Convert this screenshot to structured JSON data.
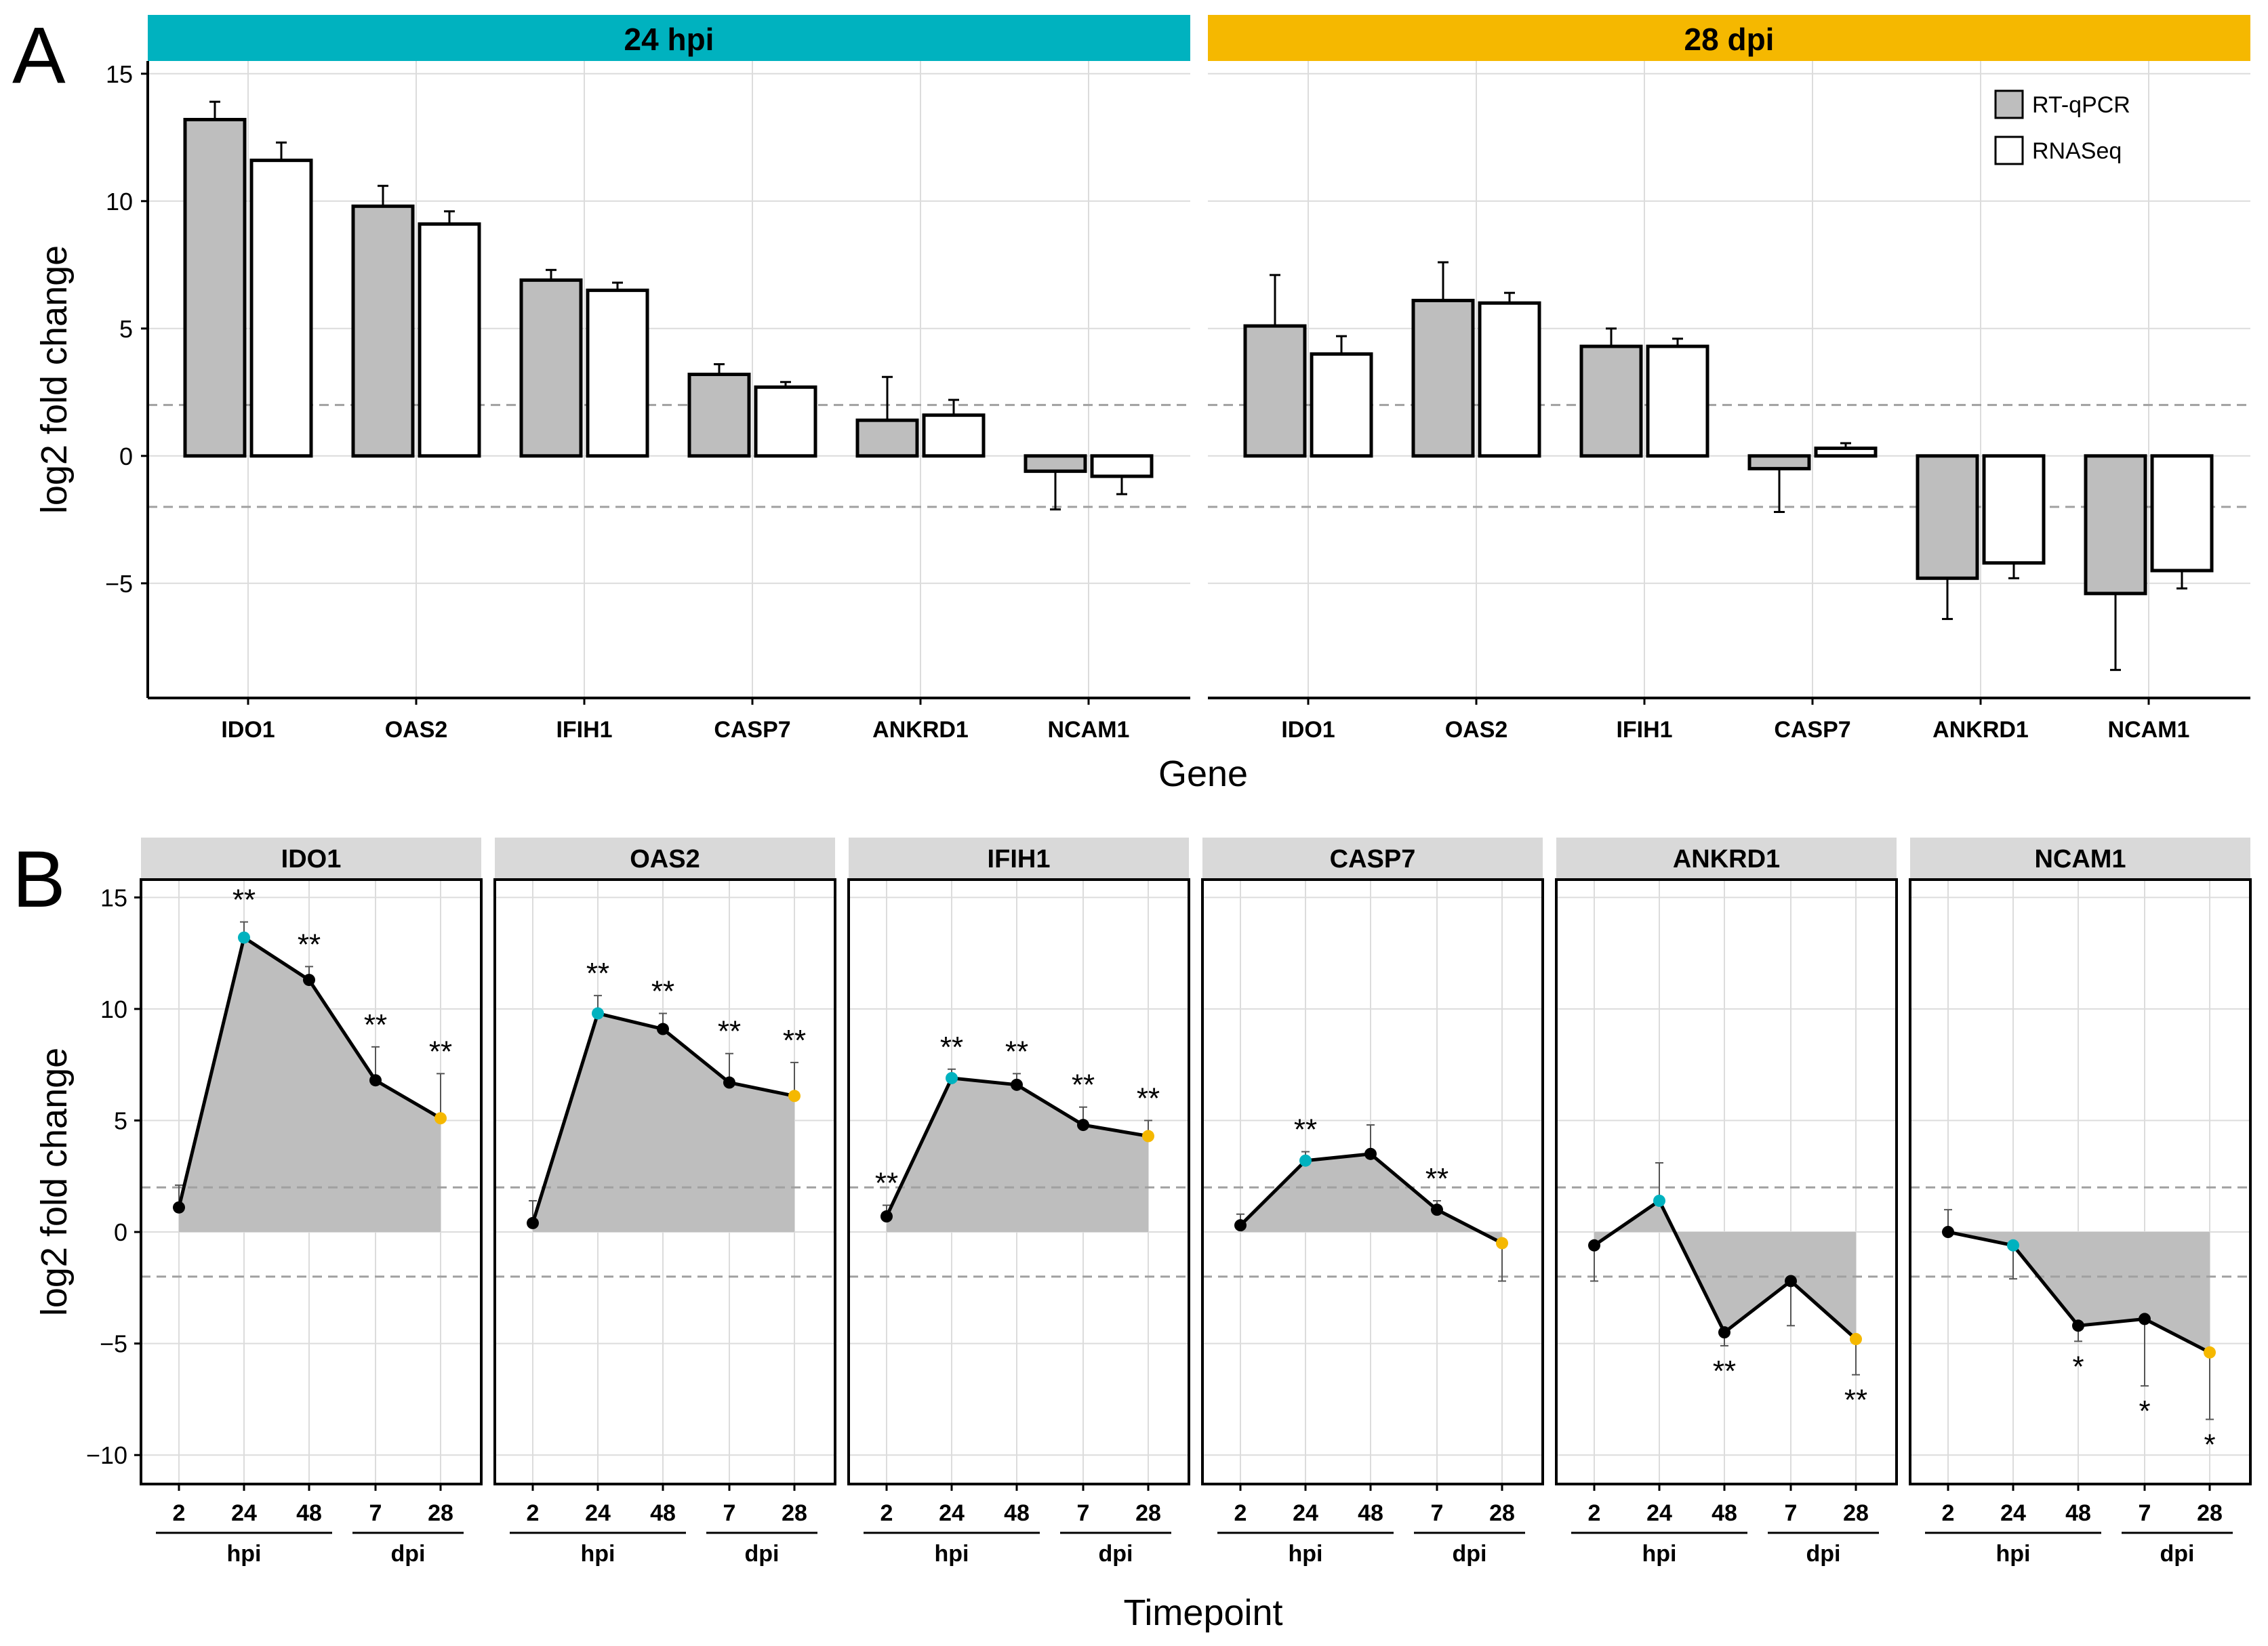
{
  "panel_labels": {
    "a": "A",
    "b": "B"
  },
  "colors": {
    "teal": "#00B2BF",
    "gold": "#F5B800",
    "bar_fill": "#BEBEBE",
    "area_fill": "#BEBEBE",
    "strip": "#D9D9D9",
    "grid": "#DCDCDC",
    "dash": "#A0A0A0"
  },
  "chart_data": [
    {
      "id": "panel-a",
      "type": "bar",
      "ylabel": "log2 fold change",
      "xlabel": "Gene",
      "ylim": [
        -9.5,
        15.5
      ],
      "yticks": [
        -5,
        0,
        5,
        10,
        15
      ],
      "threshold_lines": [
        2,
        -2
      ],
      "legend": [
        "RT-qPCR",
        "RNASeq"
      ],
      "legend_position": "top-right",
      "facets": [
        {
          "label": "24 hpi",
          "color": "#00B2BF",
          "categories": [
            "IDO1",
            "OAS2",
            "IFIH1",
            "CASP7",
            "ANKRD1",
            "NCAM1"
          ],
          "series": [
            {
              "name": "RT-qPCR",
              "values": [
                13.2,
                9.8,
                6.9,
                3.2,
                1.4,
                -0.6
              ],
              "errors": [
                0.7,
                0.8,
                0.4,
                0.4,
                1.7,
                1.5
              ]
            },
            {
              "name": "RNASeq",
              "values": [
                11.6,
                9.1,
                6.5,
                2.7,
                1.6,
                -0.8
              ],
              "errors": [
                0.7,
                0.5,
                0.3,
                0.2,
                0.6,
                0.7
              ]
            }
          ]
        },
        {
          "label": "28 dpi",
          "color": "#F5B800",
          "categories": [
            "IDO1",
            "OAS2",
            "IFIH1",
            "CASP7",
            "ANKRD1",
            "NCAM1"
          ],
          "series": [
            {
              "name": "RT-qPCR",
              "values": [
                5.1,
                6.1,
                4.3,
                -0.5,
                -4.8,
                -5.4
              ],
              "errors": [
                2.0,
                1.5,
                0.7,
                1.7,
                1.6,
                3.0
              ]
            },
            {
              "name": "RNASeq",
              "values": [
                4.0,
                6.0,
                4.3,
                0.3,
                -4.2,
                -4.5
              ],
              "errors": [
                0.7,
                0.4,
                0.3,
                0.2,
                0.6,
                0.7
              ]
            }
          ]
        }
      ]
    },
    {
      "id": "panel-b",
      "type": "line",
      "ylabel": "log2 fold change",
      "xlabel": "Timepoint",
      "ylim": [
        -11.3,
        15.8
      ],
      "yticks": [
        -10,
        -5,
        0,
        5,
        10,
        15
      ],
      "threshold_lines": [
        2,
        -2
      ],
      "timepoints": [
        "2",
        "24",
        "48",
        "7",
        "28"
      ],
      "x_positions": [
        0,
        1,
        2,
        3,
        4
      ],
      "group_labels": [
        {
          "label": "hpi",
          "from": 0,
          "to": 2
        },
        {
          "label": "dpi",
          "from": 3,
          "to": 4
        }
      ],
      "highlight": {
        "index": 1,
        "color": "#00B2BF",
        "index2": 4,
        "color2": "#F5B800"
      },
      "facets": [
        {
          "label": "IDO1",
          "values": [
            1.1,
            13.2,
            11.3,
            6.8,
            5.1
          ],
          "errors": [
            1.0,
            0.7,
            0.6,
            1.5,
            2.0
          ],
          "sig": [
            "",
            "**",
            "**",
            "**",
            "**"
          ]
        },
        {
          "label": "OAS2",
          "values": [
            0.4,
            9.8,
            9.1,
            6.7,
            6.1
          ],
          "errors": [
            1.0,
            0.8,
            0.7,
            1.3,
            1.5
          ],
          "sig": [
            "",
            "**",
            "**",
            "**",
            "**"
          ]
        },
        {
          "label": "IFIH1",
          "values": [
            0.7,
            6.9,
            6.6,
            4.8,
            4.3
          ],
          "errors": [
            0.5,
            0.4,
            0.5,
            0.8,
            0.7
          ],
          "sig": [
            "**",
            "**",
            "**",
            "**",
            "**"
          ]
        },
        {
          "label": "CASP7",
          "values": [
            0.3,
            3.2,
            3.5,
            1.0,
            -0.5
          ],
          "errors": [
            0.5,
            0.4,
            1.3,
            0.4,
            1.7
          ],
          "sig": [
            "",
            "**",
            "",
            "**",
            ""
          ]
        },
        {
          "label": "ANKRD1",
          "values": [
            -0.6,
            1.4,
            -4.5,
            -2.2,
            -4.8
          ],
          "errors": [
            1.6,
            1.7,
            0.6,
            2.0,
            1.6
          ],
          "sig": [
            "",
            "",
            "**",
            "",
            "**"
          ]
        },
        {
          "label": "NCAM1",
          "values": [
            0.0,
            -0.6,
            -4.2,
            -3.9,
            -5.4
          ],
          "errors": [
            1.0,
            1.5,
            0.7,
            3.0,
            3.0
          ],
          "sig": [
            "",
            "",
            "*",
            "*",
            "*"
          ]
        }
      ]
    }
  ]
}
